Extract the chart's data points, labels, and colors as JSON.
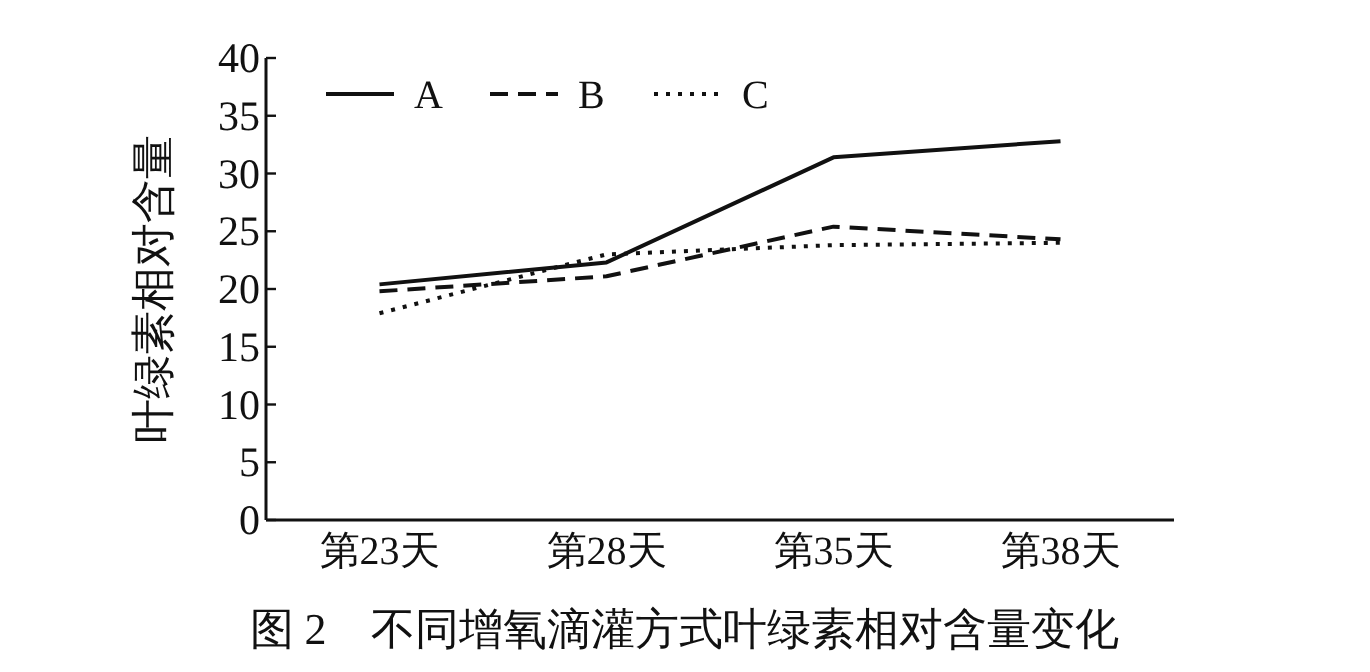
{
  "chart_data": {
    "type": "line",
    "title": "图 2　不同增氧滴灌方式叶绿素相对含量变化",
    "ylabel": "叶绿素相对含量",
    "categories": [
      "第23天",
      "第28天",
      "第35天",
      "第38天"
    ],
    "ylim": [
      0,
      40
    ],
    "yticks": [
      0,
      5,
      10,
      15,
      20,
      25,
      30,
      35,
      40
    ],
    "grid": false,
    "legend": "top left",
    "marker": "none",
    "series": [
      {
        "name": "A",
        "color": "#111111",
        "line_style": "solid",
        "values": [
          20.4,
          22.3,
          31.4,
          32.8
        ]
      },
      {
        "name": "B",
        "color": "#111111",
        "line_style": "dashed",
        "values": [
          19.8,
          21.1,
          25.4,
          24.3
        ]
      },
      {
        "name": "C",
        "color": "#111111",
        "line_style": "dotted",
        "values": [
          17.9,
          23.0,
          23.8,
          24.0
        ]
      }
    ]
  }
}
